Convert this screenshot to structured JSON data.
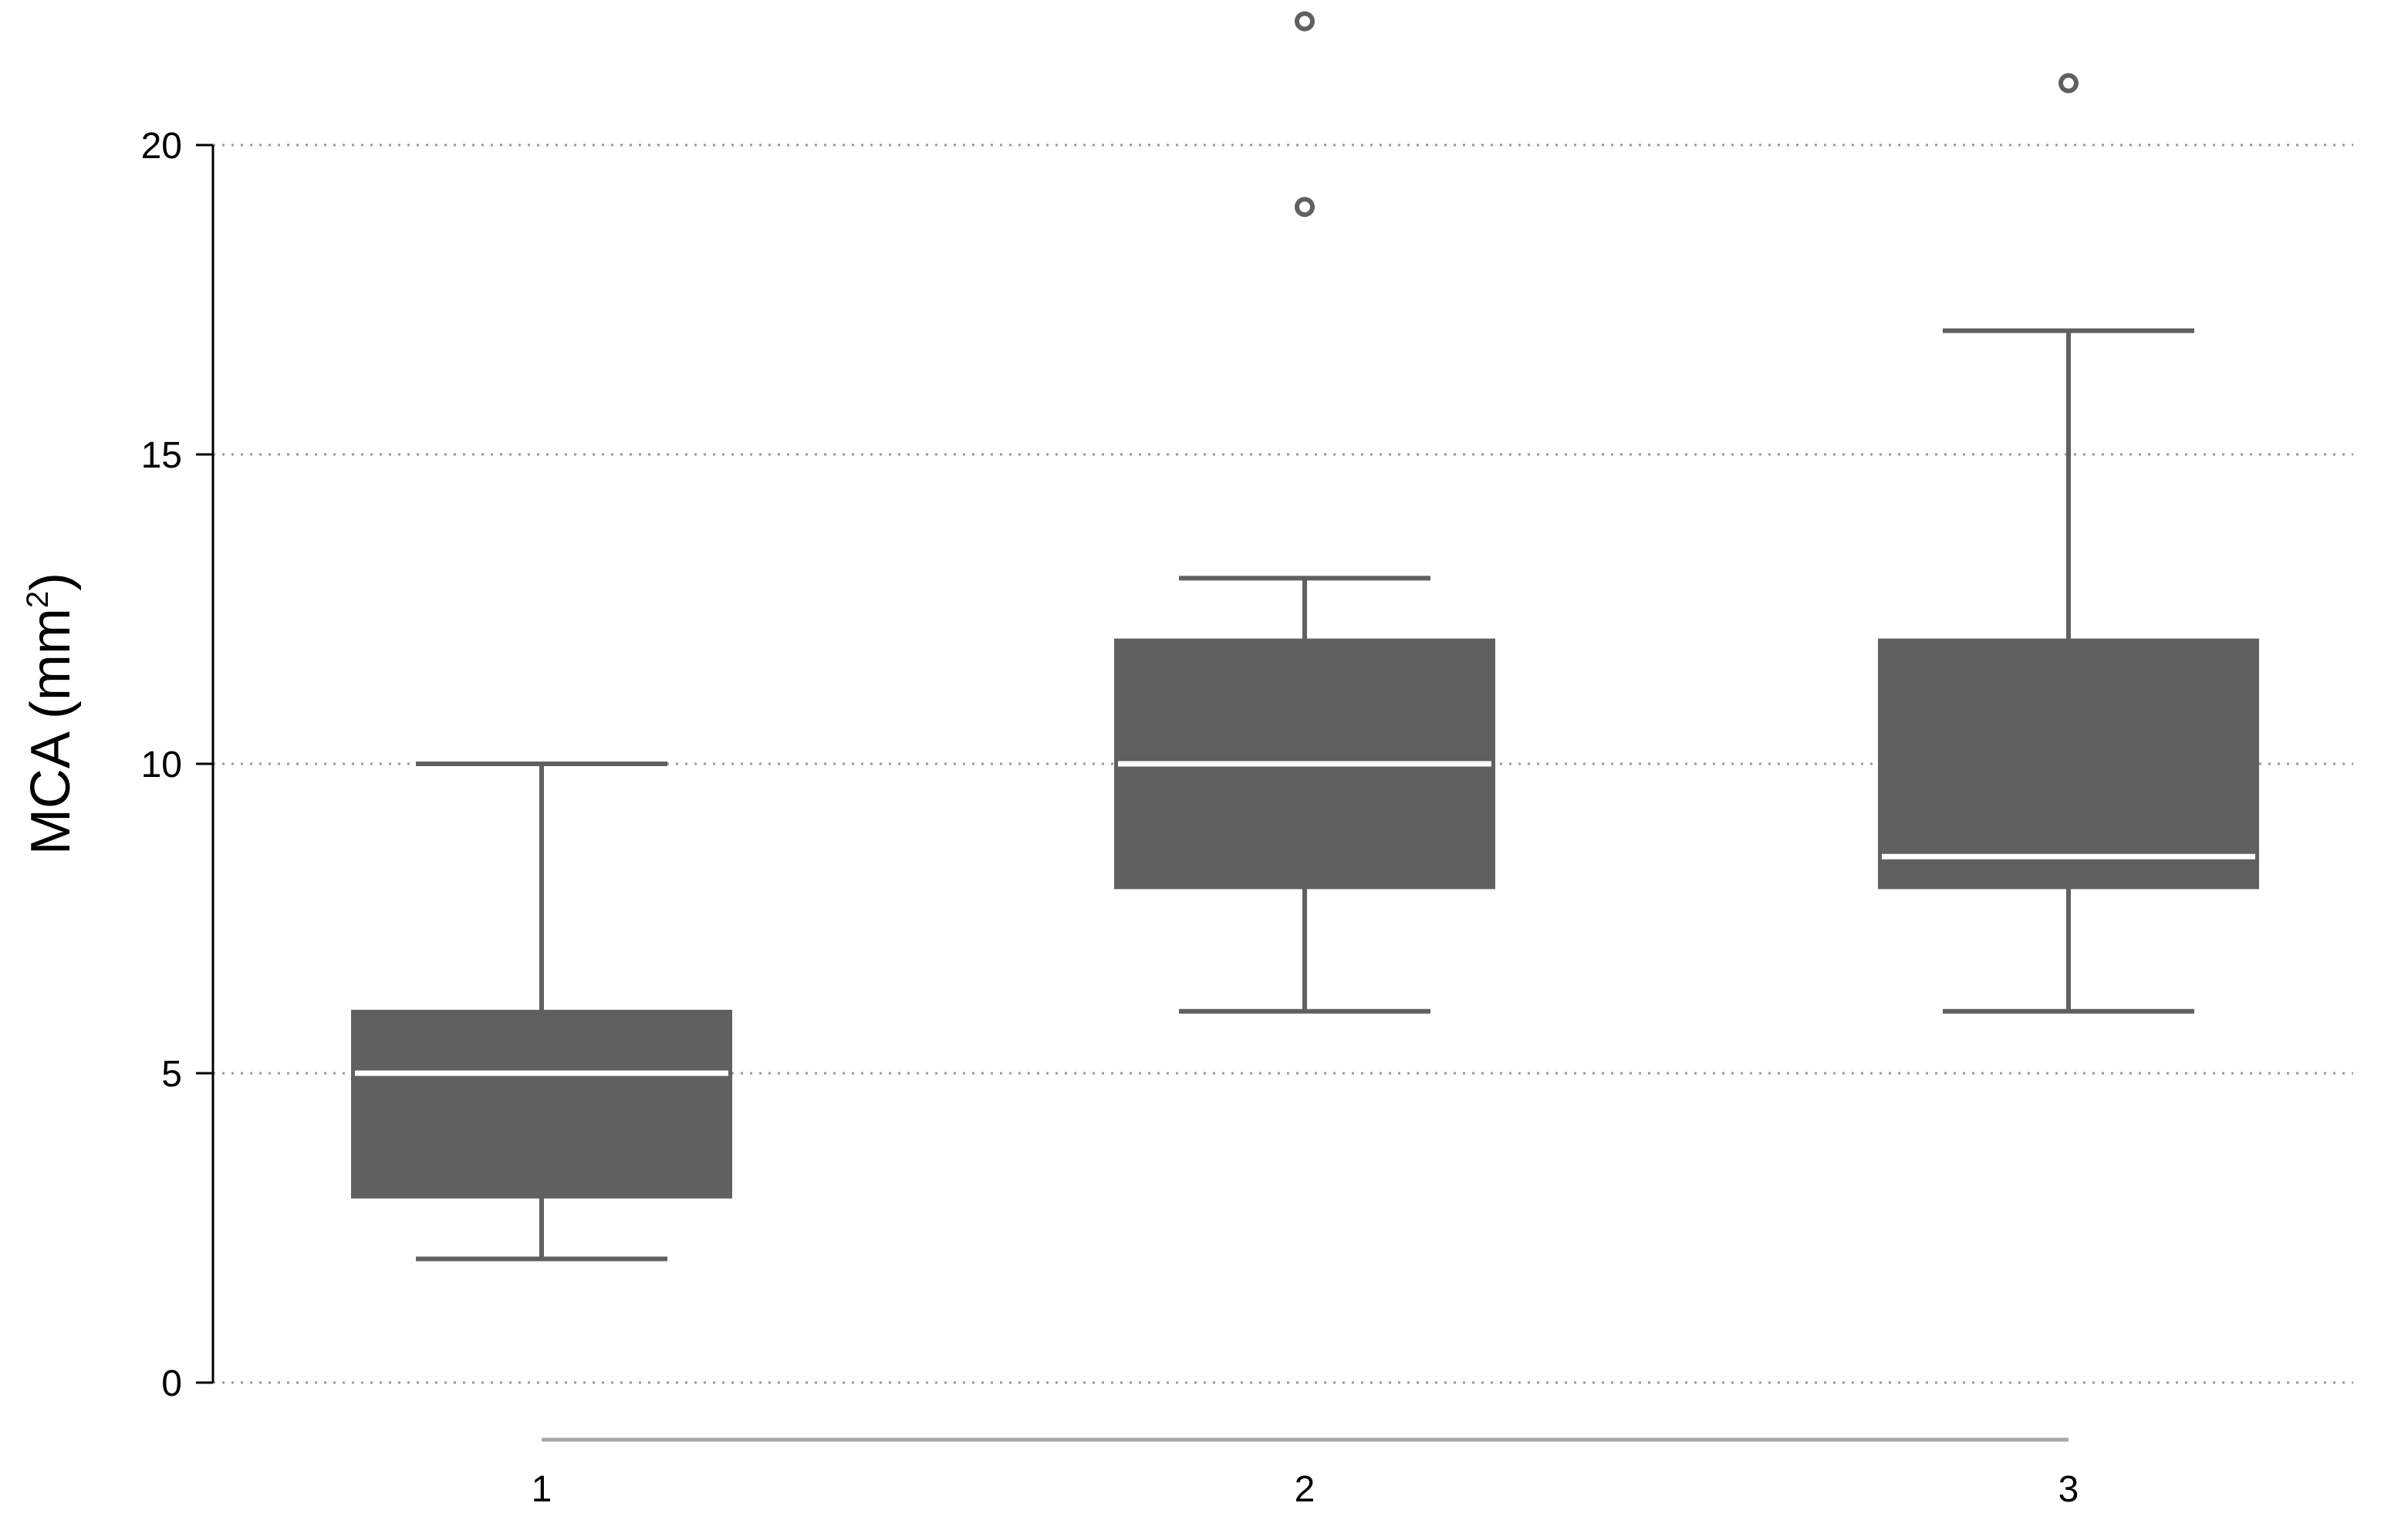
{
  "chart_data": {
    "type": "box",
    "ylabel": "MCA (mm",
    "ylabel_superscript": "2",
    "ylabel_close": ")",
    "xlabel": "",
    "ylim": [
      0,
      22
    ],
    "yticks": [
      0,
      5,
      10,
      15,
      20
    ],
    "grid": "horizontal-dotted",
    "categories": [
      "1",
      "2",
      "3"
    ],
    "boxes": [
      {
        "category": "1",
        "whisker_low": 2,
        "q1": 3,
        "median": 5,
        "q3": 6,
        "whisker_high": 10,
        "outliers": []
      },
      {
        "category": "2",
        "whisker_low": 6,
        "q1": 8,
        "median": 10,
        "q3": 12,
        "whisker_high": 13,
        "outliers": [
          19,
          22
        ]
      },
      {
        "category": "3",
        "whisker_low": 6,
        "q1": 8,
        "median": 8.5,
        "q3": 12,
        "whisker_high": 17,
        "outliers": [
          21
        ]
      }
    ],
    "colors": {
      "box": "#606060",
      "median": "#ffffff",
      "grid": "#9a9a9a",
      "axis": "#000000",
      "x_baseline": "#a8a8a8"
    }
  }
}
